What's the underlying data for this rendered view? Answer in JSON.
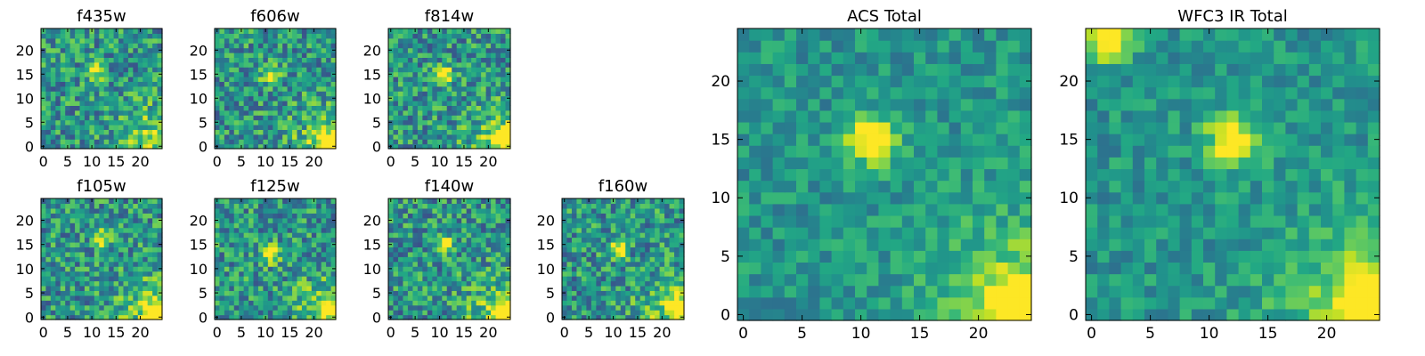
{
  "colormap": "viridis",
  "colors": {
    "viridis_low": "#440154",
    "viridis_mid": "#21918c",
    "viridis_high": "#fde725",
    "background": "#ffffff",
    "axis": "#000000"
  },
  "chart_data": [
    {
      "type": "heatmap",
      "title": "f435w",
      "grid_size": [
        25,
        25
      ],
      "xlim": [
        -0.5,
        24.5
      ],
      "ylim": [
        -0.5,
        24.5
      ],
      "xticks": [
        0,
        5,
        10,
        15,
        20
      ],
      "yticks": [
        0,
        5,
        10,
        15,
        20
      ],
      "colormap": "viridis",
      "features": [
        {
          "x": 11,
          "y": 16,
          "intensity": "high"
        }
      ],
      "seed": 11
    },
    {
      "type": "heatmap",
      "title": "f606w",
      "grid_size": [
        25,
        25
      ],
      "xlim": [
        -0.5,
        24.5
      ],
      "ylim": [
        -0.5,
        24.5
      ],
      "xticks": [
        0,
        5,
        10,
        15,
        20
      ],
      "yticks": [
        0,
        5,
        10,
        15,
        20
      ],
      "colormap": "viridis",
      "features": [
        {
          "x": 11,
          "y": 15,
          "intensity": "high"
        },
        {
          "x": 23,
          "y": 1,
          "intensity": "high"
        }
      ],
      "seed": 23
    },
    {
      "type": "heatmap",
      "title": "f814w",
      "grid_size": [
        25,
        25
      ],
      "xlim": [
        -0.5,
        24.5
      ],
      "ylim": [
        -0.5,
        24.5
      ],
      "xticks": [
        0,
        5,
        10,
        15,
        20
      ],
      "yticks": [
        0,
        5,
        10,
        15,
        20
      ],
      "colormap": "viridis",
      "features": [
        {
          "x": 11,
          "y": 15,
          "intensity": "high"
        },
        {
          "x": 23,
          "y": 2,
          "intensity": "high"
        }
      ],
      "seed": 37
    },
    {
      "type": "heatmap",
      "title": "f105w",
      "grid_size": [
        25,
        25
      ],
      "xlim": [
        -0.5,
        24.5
      ],
      "ylim": [
        -0.5,
        24.5
      ],
      "xticks": [
        0,
        5,
        10,
        15,
        20
      ],
      "yticks": [
        0,
        5,
        10,
        15,
        20
      ],
      "colormap": "viridis",
      "features": [
        {
          "x": 12,
          "y": 16,
          "intensity": "high"
        },
        {
          "x": 23,
          "y": 1,
          "intensity": "high"
        }
      ],
      "seed": 41
    },
    {
      "type": "heatmap",
      "title": "f125w",
      "grid_size": [
        25,
        25
      ],
      "xlim": [
        -0.5,
        24.5
      ],
      "ylim": [
        -0.5,
        24.5
      ],
      "xticks": [
        0,
        5,
        10,
        15,
        20
      ],
      "yticks": [
        0,
        5,
        10,
        15,
        20
      ],
      "colormap": "viridis",
      "features": [
        {
          "x": 11,
          "y": 13,
          "intensity": "high"
        },
        {
          "x": 23,
          "y": 2,
          "intensity": "high"
        }
      ],
      "seed": 53
    },
    {
      "type": "heatmap",
      "title": "f140w",
      "grid_size": [
        25,
        25
      ],
      "xlim": [
        -0.5,
        24.5
      ],
      "ylim": [
        -0.5,
        24.5
      ],
      "xticks": [
        0,
        5,
        10,
        15,
        20
      ],
      "yticks": [
        0,
        5,
        10,
        15,
        20
      ],
      "colormap": "viridis",
      "features": [
        {
          "x": 11,
          "y": 15,
          "intensity": "high"
        },
        {
          "x": 23,
          "y": 1,
          "intensity": "high"
        }
      ],
      "seed": 67
    },
    {
      "type": "heatmap",
      "title": "f160w",
      "grid_size": [
        25,
        25
      ],
      "xlim": [
        -0.5,
        24.5
      ],
      "ylim": [
        -0.5,
        24.5
      ],
      "xticks": [
        0,
        5,
        10,
        15,
        20
      ],
      "yticks": [
        0,
        5,
        10,
        15,
        20
      ],
      "colormap": "viridis",
      "features": [
        {
          "x": 11,
          "y": 14,
          "intensity": "high"
        },
        {
          "x": 23,
          "y": 2,
          "intensity": "high"
        }
      ],
      "seed": 79
    },
    {
      "type": "heatmap",
      "title": "ACS Total",
      "grid_size": [
        25,
        25
      ],
      "xlim": [
        -0.5,
        24.5
      ],
      "ylim": [
        -0.5,
        24.5
      ],
      "xticks": [
        0,
        5,
        10,
        15,
        20
      ],
      "yticks": [
        0,
        5,
        10,
        15,
        20
      ],
      "colormap": "viridis",
      "features": [
        {
          "x": 11,
          "y": 15,
          "intensity": "high"
        },
        {
          "x": 23,
          "y": 1,
          "intensity": "high"
        }
      ],
      "seed": 97
    },
    {
      "type": "heatmap",
      "title": "WFC3 IR Total",
      "grid_size": [
        25,
        25
      ],
      "xlim": [
        -0.5,
        24.5
      ],
      "ylim": [
        -0.5,
        24.5
      ],
      "xticks": [
        0,
        5,
        10,
        15,
        20
      ],
      "yticks": [
        0,
        5,
        10,
        15,
        20
      ],
      "colormap": "viridis",
      "features": [
        {
          "x": 12,
          "y": 15,
          "intensity": "high"
        },
        {
          "x": 23,
          "y": 1,
          "intensity": "high"
        },
        {
          "x": 1,
          "y": 24,
          "intensity": "high"
        }
      ],
      "seed": 113
    }
  ]
}
